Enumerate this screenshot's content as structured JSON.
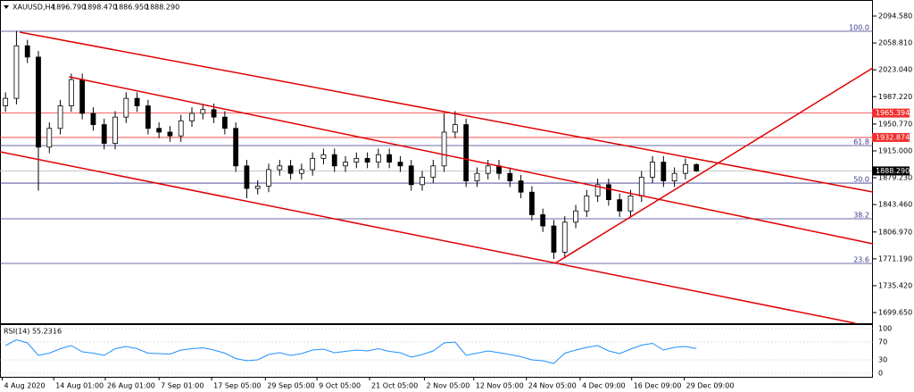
{
  "chart_data": {
    "type": "candlestick",
    "header": {
      "symbol": "XAUUSD,H4",
      "open": "1896.790",
      "high": "1898.470",
      "low": "1886.950",
      "close": "1888.290"
    },
    "x": [
      0,
      1,
      2,
      3,
      4,
      5,
      6,
      7,
      8,
      9,
      10,
      11,
      12,
      13,
      14,
      15,
      16,
      17,
      18,
      19,
      20,
      21,
      22,
      23,
      24,
      25,
      26,
      27,
      28,
      29,
      30,
      31,
      32,
      33,
      34,
      35,
      36,
      37,
      38,
      39,
      40,
      41,
      42,
      43,
      44,
      45,
      46,
      47,
      48,
      49,
      50,
      51,
      52,
      53,
      54,
      55,
      56,
      57,
      58,
      59,
      60,
      61,
      62,
      63
    ],
    "open": [
      1975,
      1985,
      2055,
      2040,
      1920,
      1945,
      1975,
      2010,
      1965,
      1950,
      1925,
      1960,
      1985,
      1975,
      1945,
      1940,
      1935,
      1955,
      1965,
      1970,
      1960,
      1945,
      1895,
      1865,
      1868,
      1890,
      1895,
      1885,
      1890,
      1905,
      1910,
      1895,
      1900,
      1905,
      1900,
      1910,
      1900,
      1895,
      1870,
      1880,
      1895,
      1940,
      1950,
      1875,
      1885,
      1895,
      1885,
      1875,
      1860,
      1830,
      1815,
      1780,
      1820,
      1835,
      1855,
      1870,
      1850,
      1835,
      1855,
      1880,
      1900,
      1875,
      1885,
      1896.79
    ],
    "high": [
      1993,
      2075,
      2063,
      2048,
      1953,
      1983,
      2018,
      2018,
      1973,
      1958,
      1968,
      1993,
      1993,
      1983,
      1953,
      1948,
      1963,
      1973,
      1978,
      1978,
      1968,
      1953,
      1903,
      1876,
      1898,
      1903,
      1903,
      1898,
      1913,
      1918,
      1918,
      1908,
      1913,
      1913,
      1918,
      1918,
      1908,
      1903,
      1888,
      1903,
      1965,
      1968,
      1958,
      1893,
      1903,
      1903,
      1893,
      1883,
      1868,
      1838,
      1823,
      1828,
      1843,
      1863,
      1878,
      1878,
      1858,
      1863,
      1888,
      1908,
      1908,
      1893,
      1905,
      1898.47
    ],
    "low": [
      1967,
      1977,
      2032,
      1862,
      1912,
      1937,
      1967,
      1957,
      1942,
      1917,
      1917,
      1952,
      1967,
      1937,
      1932,
      1927,
      1927,
      1947,
      1957,
      1952,
      1937,
      1887,
      1852,
      1857,
      1860,
      1882,
      1877,
      1877,
      1882,
      1897,
      1887,
      1887,
      1892,
      1892,
      1892,
      1892,
      1887,
      1862,
      1862,
      1872,
      1887,
      1932,
      1867,
      1867,
      1877,
      1877,
      1867,
      1852,
      1822,
      1807,
      1771,
      1772,
      1812,
      1827,
      1847,
      1842,
      1827,
      1827,
      1847,
      1872,
      1867,
      1867,
      1877,
      1886.95
    ],
    "close": [
      1985,
      2055,
      2040,
      1920,
      1945,
      1975,
      2010,
      1965,
      1950,
      1925,
      1960,
      1985,
      1975,
      1945,
      1940,
      1935,
      1955,
      1965,
      1970,
      1960,
      1945,
      1895,
      1865,
      1868,
      1890,
      1895,
      1885,
      1890,
      1905,
      1910,
      1895,
      1900,
      1905,
      1900,
      1910,
      1900,
      1895,
      1870,
      1880,
      1895,
      1940,
      1950,
      1875,
      1885,
      1895,
      1885,
      1875,
      1860,
      1830,
      1815,
      1780,
      1820,
      1835,
      1855,
      1870,
      1850,
      1835,
      1855,
      1880,
      1900,
      1875,
      1885,
      1896.79,
      1888.29
    ],
    "xlim": [
      -0.5,
      79.1
    ],
    "xticks": [
      {
        "value": -0.3,
        "label": "4 Aug 2020"
      },
      {
        "value": 4.4,
        "label": "14 Aug 01:00"
      },
      {
        "value": 9.1,
        "label": "26 Aug 01:00"
      },
      {
        "value": 14.0,
        "label": "7 Sep 01:00"
      },
      {
        "value": 18.8,
        "label": "17 Sep 05:00"
      },
      {
        "value": 23.7,
        "label": "29 Sep 05:00"
      },
      {
        "value": 28.4,
        "label": "9 Oct 05:00"
      },
      {
        "value": 33.2,
        "label": "21 Oct 05:00"
      },
      {
        "value": 38.2,
        "label": "2 Nov 05:00"
      },
      {
        "value": 42.7,
        "label": "12 Nov 05:00"
      },
      {
        "value": 47.5,
        "label": "24 Nov 05:00"
      },
      {
        "value": 52.4,
        "label": "4 Dec 09:00"
      },
      {
        "value": 57.1,
        "label": "16 Dec 09:00"
      },
      {
        "value": 61.9,
        "label": "29 Dec 09:00"
      }
    ],
    "ylim": [
      1685.4,
      2104.1
    ],
    "yticks": [
      {
        "value": 2094.58,
        "label": "2094.580"
      },
      {
        "value": 2058.81,
        "label": "2058.810"
      },
      {
        "value": 2023.04,
        "label": "2023.040"
      },
      {
        "value": 1987.22,
        "label": "1987.220"
      },
      {
        "value": 1950.77,
        "label": "1950.770"
      },
      {
        "value": 1915.0,
        "label": "1915.000"
      },
      {
        "value": 1879.23,
        "label": "1879.230"
      },
      {
        "value": 1843.46,
        "label": "1843.460"
      },
      {
        "value": 1806.97,
        "label": "1806.970"
      },
      {
        "value": 1771.19,
        "label": "1771.190"
      },
      {
        "value": 1735.42,
        "label": "1735.420"
      },
      {
        "value": 1699.65,
        "label": "1699.650"
      }
    ],
    "trendline_color": "#e00000",
    "trendlines": [
      {
        "x": [
          1.3,
          79.1
        ],
        "y": [
          2073.2,
          1860.2
        ]
      },
      {
        "x": [
          5.8,
          79.1
        ],
        "y": [
          2013.7,
          1791.3
        ]
      },
      {
        "x": [
          -0.5,
          77.5
        ],
        "y": [
          1913.8,
          1685.4
        ]
      },
      {
        "x": [
          50.1,
          79.1
        ],
        "y": [
          1765.1,
          2025.6
        ]
      }
    ],
    "fib_color": "#3a3a8c",
    "fib_levels": [
      {
        "label": "100.0",
        "value": 2074.4
      },
      {
        "label": "61.8",
        "value": 1922.1
      },
      {
        "label": "50.0",
        "value": 1872.1
      },
      {
        "label": "38.2",
        "value": 1824.6
      },
      {
        "label": "23.6",
        "value": 1765.1
      }
    ],
    "price_levels": [
      {
        "value": 1965.394,
        "label": "1965.394"
      },
      {
        "value": 1932.874,
        "label": "1932.874"
      }
    ],
    "price_level_color": "#f03030",
    "current_price": {
      "value": 1888.29,
      "label": "1888.290"
    },
    "rsi": {
      "label": "RSI(14) 55.2316",
      "color": "#1e90ff",
      "values": [
        62,
        75,
        68,
        40,
        45,
        55,
        62,
        48,
        45,
        40,
        55,
        60,
        55,
        45,
        44,
        43,
        52,
        55,
        57,
        52,
        45,
        33,
        28,
        30,
        42,
        46,
        40,
        44,
        52,
        54,
        46,
        49,
        52,
        50,
        55,
        49,
        46,
        36,
        42,
        50,
        68,
        70,
        40,
        45,
        50,
        46,
        42,
        37,
        30,
        28,
        22,
        45,
        52,
        58,
        62,
        50,
        44,
        54,
        63,
        67,
        52,
        58,
        60,
        55.2316
      ],
      "ylim": [
        -8,
        108
      ],
      "yticks": [
        100,
        70,
        30,
        0
      ]
    }
  }
}
